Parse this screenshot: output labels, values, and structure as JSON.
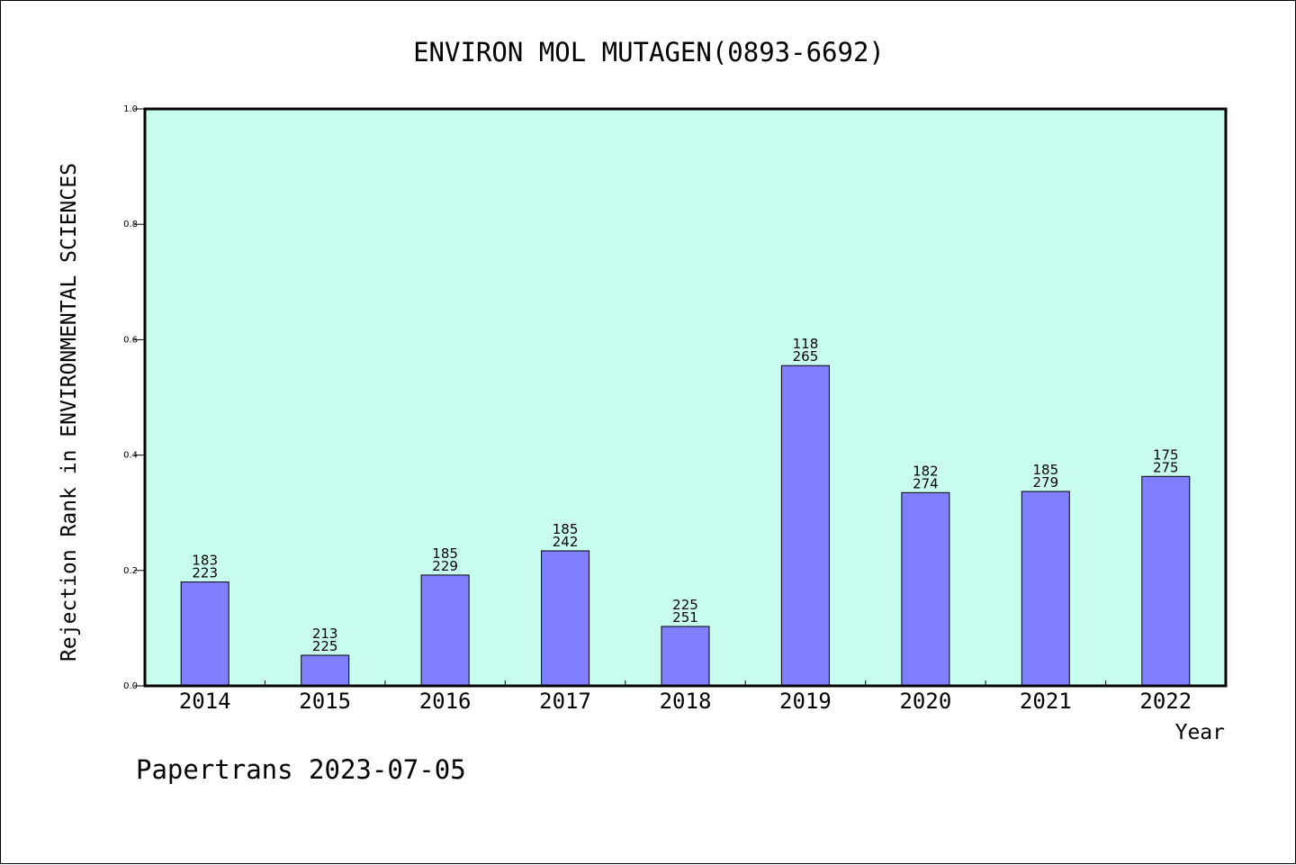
{
  "chart_data": {
    "type": "bar",
    "title": "ENVIRON MOL MUTAGEN(0893-6692)",
    "xlabel": "Year",
    "ylabel": "Rejection Rank in ENVIRONMENTAL SCIENCES",
    "ylim": [
      0,
      1.0
    ],
    "yticks": [
      "0.0",
      "0.2",
      "0.4",
      "0.6",
      "0.8",
      "1.0"
    ],
    "categories": [
      "2014",
      "2015",
      "2016",
      "2017",
      "2018",
      "2019",
      "2020",
      "2021",
      "2022"
    ],
    "values": [
      0.18,
      0.053,
      0.192,
      0.234,
      0.103,
      0.555,
      0.335,
      0.337,
      0.363
    ],
    "bar_labels": [
      [
        "183",
        "223"
      ],
      [
        "213",
        "225"
      ],
      [
        "185",
        "229"
      ],
      [
        "185",
        "242"
      ],
      [
        "225",
        "251"
      ],
      [
        "118",
        "265"
      ],
      [
        "182",
        "274"
      ],
      [
        "185",
        "279"
      ],
      [
        "175",
        "275"
      ]
    ],
    "grid": false,
    "plot_background": "#c8fcee",
    "bar_color": "#8080ff"
  },
  "footer": "Papertrans 2023-07-05"
}
